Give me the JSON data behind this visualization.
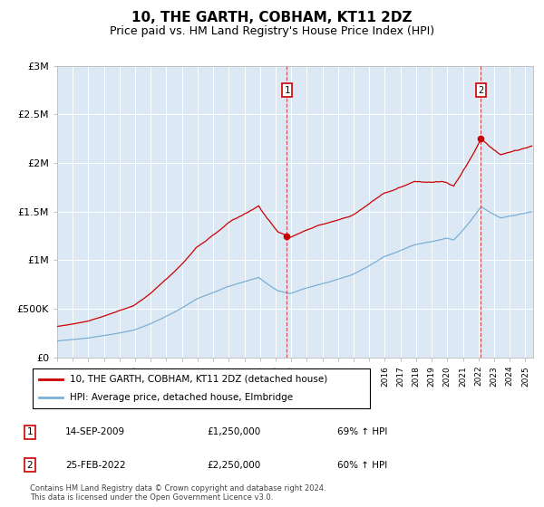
{
  "title": "10, THE GARTH, COBHAM, KT11 2DZ",
  "subtitle": "Price paid vs. HM Land Registry's House Price Index (HPI)",
  "ylim": [
    0,
    3000000
  ],
  "yticks": [
    0,
    500000,
    1000000,
    1500000,
    2000000,
    2500000,
    3000000
  ],
  "ytick_labels": [
    "£0",
    "£500K",
    "£1M",
    "£1.5M",
    "£2M",
    "£2.5M",
    "£3M"
  ],
  "background_color": "#ffffff",
  "plot_bg_color": "#dce9f5",
  "grid_color": "#ffffff",
  "title_fontsize": 11,
  "subtitle_fontsize": 9,
  "annotation1": {
    "label": "1",
    "x_year": 2009.72,
    "price": 1250000
  },
  "annotation2": {
    "label": "2",
    "x_year": 2022.15,
    "price": 2250000
  },
  "legend_line1": "10, THE GARTH, COBHAM, KT11 2DZ (detached house)",
  "legend_line2": "HPI: Average price, detached house, Elmbridge",
  "footer": "Contains HM Land Registry data © Crown copyright and database right 2024.\nThis data is licensed under the Open Government Licence v3.0.",
  "red_color": "#cc0000",
  "blue_color": "#7bafd4",
  "xmin": 1995.0,
  "xmax": 2025.5,
  "note_table": [
    {
      "num": "1",
      "date": "14-SEP-2009",
      "price": "£1,250,000",
      "pct": "69% ↑ HPI"
    },
    {
      "num": "2",
      "date": "25-FEB-2022",
      "price": "£2,250,000",
      "pct": "60% ↑ HPI"
    }
  ]
}
